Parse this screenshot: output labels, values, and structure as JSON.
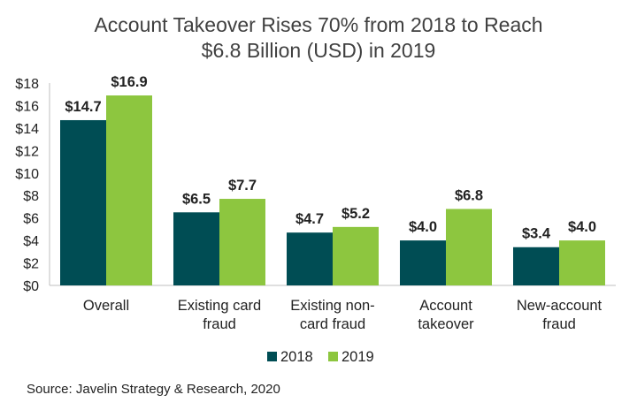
{
  "chart_data": {
    "type": "bar",
    "title": {
      "line1": "Account Takeover Rises 70% from 2018 to Reach",
      "line2": "$6.8 Billion (USD) in 2019"
    },
    "categories": [
      [
        "Overall"
      ],
      [
        "Existing card",
        "fraud"
      ],
      [
        "Existing non-",
        "card fraud"
      ],
      [
        "Account",
        "takeover"
      ],
      [
        "New-account",
        "fraud"
      ]
    ],
    "series": [
      {
        "name": "2018",
        "color": "#004d54",
        "values": [
          14.7,
          6.5,
          4.7,
          4.0,
          3.4
        ],
        "labels": [
          "$14.7",
          "$6.5",
          "$4.7",
          "$4.0",
          "$3.4"
        ]
      },
      {
        "name": "2019",
        "color": "#8dc63f",
        "values": [
          16.9,
          7.7,
          5.2,
          6.8,
          4.0
        ],
        "labels": [
          "$16.9",
          "$7.7",
          "$5.2",
          "$6.8",
          "$4.0"
        ]
      }
    ],
    "ylim": [
      0,
      18
    ],
    "yticks": [
      0,
      2,
      4,
      6,
      8,
      10,
      12,
      14,
      16,
      18
    ],
    "ytick_labels": [
      "$0",
      "$2",
      "$4",
      "$6",
      "$8",
      "$10",
      "$12",
      "$14",
      "$16",
      "$18"
    ],
    "grid": false,
    "legend_position": "bottom"
  },
  "source": "Source: Javelin Strategy & Research, 2020"
}
